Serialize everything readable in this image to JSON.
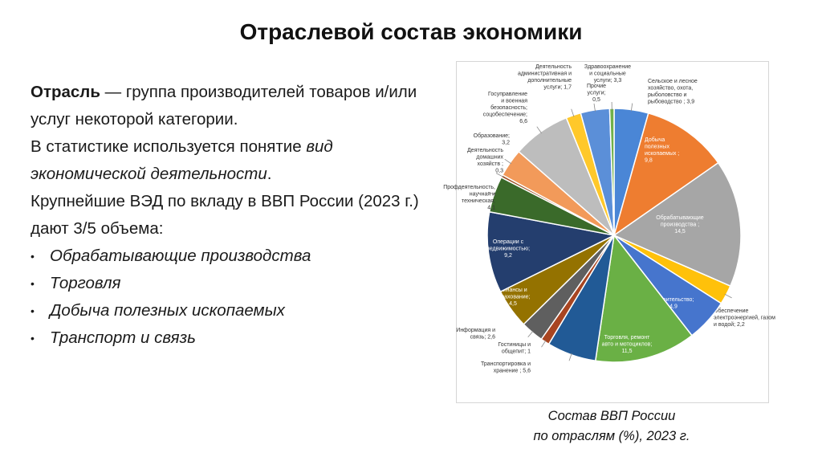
{
  "slide": {
    "title": "Отраслевой состав экономики",
    "definition_term": "Отрасль",
    "definition_rest": " — группа производителей товаров и/или услуг некоторой категории.",
    "stat_text_pre": "В статистике используется понятие ",
    "stat_text_em": "вид экономической деятельности",
    "stat_text_post": ".",
    "largest_text": "Крупнейшие ВЭД по вкладу в ВВП России (2023 г.) дают 3/5 объема:",
    "bullets": [
      "Обрабатывающие производства",
      "Торговля",
      "Добыча полезных ископаемых",
      "Транспорт и связь"
    ],
    "caption_line1": "Состав ВВП России",
    "caption_line2": "по отраслям (%), 2023 г."
  },
  "chart_data": {
    "type": "pie",
    "slices": [
      {
        "label": "Сельское и лесное хозяйство, охота, рыболовство и рыбоводство ; 3,9",
        "value": 3.9,
        "color": "#4a86d6"
      },
      {
        "label": "Добыча полезных ископаемых ; 9,8",
        "value": 9.8,
        "color": "#ee7d30"
      },
      {
        "label": "Обрабатывающие производства ; 14,5",
        "value": 14.5,
        "color": "#a6a6a6"
      },
      {
        "label": "Обеспечение электроэнергией, газом и водой; 2,2",
        "value": 2.2,
        "color": "#ffc10a"
      },
      {
        "label": "Строительство; 4,9",
        "value": 4.9,
        "color": "#4675cd"
      },
      {
        "label": "Торговля, ремонт авто и мотоциклов; 11,5",
        "value": 11.5,
        "color": "#6ab045"
      },
      {
        "label": "Транспортировка и хранение ; 5,6",
        "value": 5.6,
        "color": "#215a96"
      },
      {
        "label": "Гостиницы и общепит; 1",
        "value": 1.0,
        "color": "#a84521"
      },
      {
        "label": "Информация и связь; 2,6",
        "value": 2.6,
        "color": "#5f5f5f"
      },
      {
        "label": "Финансы и страхование; 4,5",
        "value": 4.5,
        "color": "#947200"
      },
      {
        "label": "Операции с недвижимостью; 9,2",
        "value": 9.2,
        "color": "#243e6e"
      },
      {
        "label": "Профдеятельность, научная и техническая; 4,1",
        "value": 4.1,
        "color": "#3a6a2a"
      },
      {
        "label": "Деятельность домашних хозяйств ; 0,3",
        "value": 0.3,
        "color": "#9c4e22"
      },
      {
        "label": "Образование; 3,2",
        "value": 3.2,
        "color": "#f29a5a"
      },
      {
        "label": "Госуправление и военная безопасность; соцобеспечение; 6,6",
        "value": 6.6,
        "color": "#bdbdbd"
      },
      {
        "label": "Деятельность административная и дополнительные услуги; 1,7",
        "value": 1.7,
        "color": "#ffc82a"
      },
      {
        "label": "Здравоохранение и социальные услуги; 3,3",
        "value": 3.3,
        "color": "#5b8fd8"
      },
      {
        "label": "Прочие услуги; 0,5",
        "value": 0.5,
        "color": "#70b04a"
      }
    ]
  }
}
